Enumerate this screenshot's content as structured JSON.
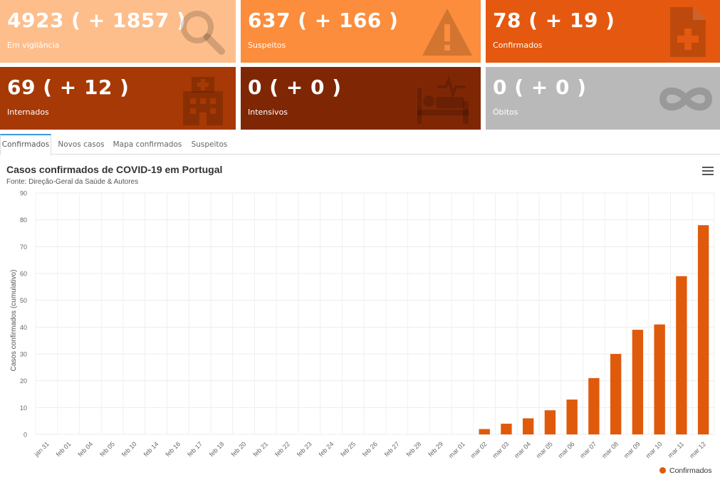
{
  "cards": [
    {
      "value": "4923 ( + 1857 )",
      "label": "Em vigilância",
      "color": "#fdbe8c",
      "icon": "search-icon"
    },
    {
      "value": "637 ( + 166 )",
      "label": "Suspeitos",
      "color": "#fc8d3c",
      "icon": "warning-icon"
    },
    {
      "value": "78 ( + 19 )",
      "label": "Confirmados",
      "color": "#e5580f",
      "icon": "medical-file-icon"
    },
    {
      "value": "69 ( + 12 )",
      "label": "Internados",
      "color": "#a63905",
      "icon": "hospital-icon"
    },
    {
      "value": "0 ( + 0 )",
      "label": "Intensivos",
      "color": "#7f2705",
      "icon": "hospital-bed-icon"
    },
    {
      "value": "0 ( + 0 )",
      "label": "Óbitos",
      "color": "#b9b9b9",
      "icon": "infinity-icon"
    }
  ],
  "tabs": [
    "Confirmados",
    "Novos casos",
    "Mapa confirmados",
    "Suspeitos"
  ],
  "active_tab": 0,
  "chart_data": {
    "type": "bar",
    "title": "Casos confirmados de COVID-19 em Portugal",
    "subtitle": "Fonte: Direção-Geral da Saúde & Autores",
    "ylabel": "Casos confirmados (cumulativo)",
    "xlabel": "",
    "ylim": [
      0,
      90
    ],
    "yticks": [
      0,
      10,
      20,
      30,
      40,
      50,
      60,
      70,
      80,
      90
    ],
    "grid": true,
    "legend_position": "bottom-right",
    "categories": [
      "jan 31",
      "feb 01",
      "feb 04",
      "feb 05",
      "feb 10",
      "feb 14",
      "feb 16",
      "feb 17",
      "feb 18",
      "feb 20",
      "feb 21",
      "feb 22",
      "feb 23",
      "feb 24",
      "feb 25",
      "feb 26",
      "feb 27",
      "feb 28",
      "feb 29",
      "mar 01",
      "mar 02",
      "mar 03",
      "mar 04",
      "mar 05",
      "mar 06",
      "mar 07",
      "mar 08",
      "mar 09",
      "mar 10",
      "mar 11",
      "mar 12"
    ],
    "series": [
      {
        "name": "Confirmados",
        "color": "#e05a0c",
        "values": [
          0,
          0,
          0,
          0,
          0,
          0,
          0,
          0,
          0,
          0,
          0,
          0,
          0,
          0,
          0,
          0,
          0,
          0,
          0,
          0,
          2,
          4,
          6,
          9,
          13,
          21,
          30,
          39,
          41,
          59,
          78
        ]
      }
    ]
  }
}
